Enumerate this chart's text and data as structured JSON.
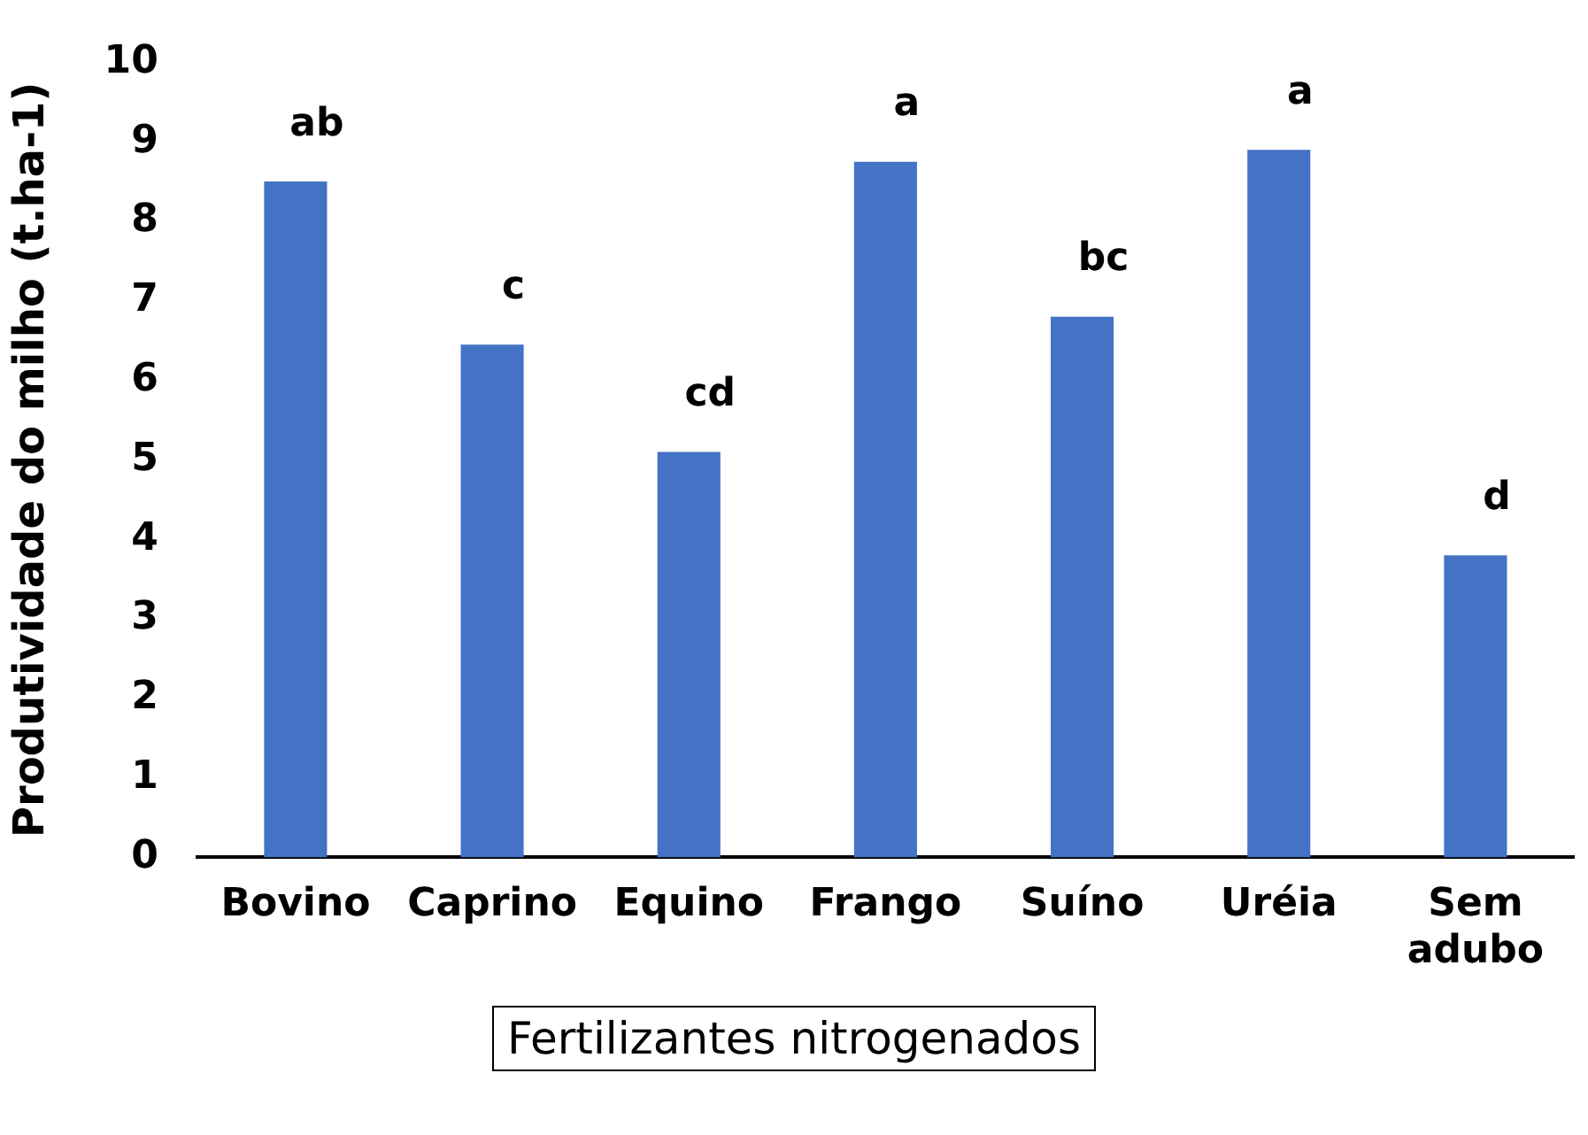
{
  "chart_data": {
    "type": "bar",
    "xlabel": "Fertilizantes nitrogenados",
    "ylabel": "Produtividade do milho (t.ha-1)",
    "categories": [
      "Bovino",
      "Caprino",
      "Equino",
      "Frango",
      "Suíno",
      "Uréia",
      "Sem adubo"
    ],
    "values": [
      8.5,
      6.45,
      5.1,
      8.75,
      6.8,
      8.9,
      3.8
    ],
    "color": "#4472c4",
    "ylim": [
      0,
      10
    ],
    "yticks": [
      0,
      1,
      2,
      3,
      4,
      5,
      6,
      7,
      8,
      9,
      10
    ],
    "grid": false,
    "legend": false,
    "annotations": [
      "ab",
      "c",
      "cd",
      "a",
      "bc",
      "a",
      "d"
    ]
  }
}
